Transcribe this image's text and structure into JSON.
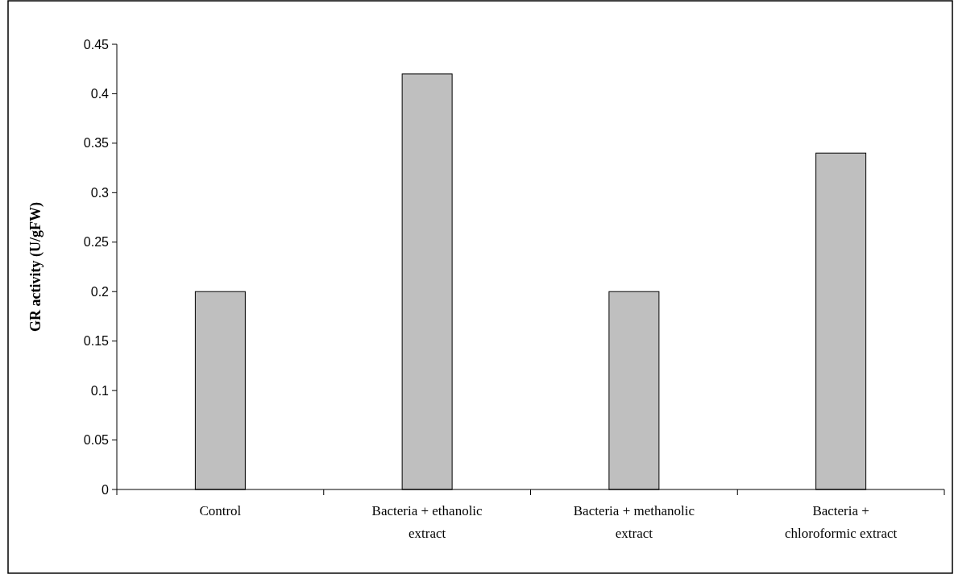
{
  "chart_data": {
    "type": "bar",
    "ylabel": "GR activity  (U/gFW)",
    "categories": [
      "Control",
      "Bacteria + ethanolic extract",
      "Bacteria + methanolic extract",
      "Bacteria + chloroformic extract"
    ],
    "values": [
      0.2,
      0.42,
      0.2,
      0.34
    ],
    "color": "#bfbfbf",
    "ylim": [
      0,
      0.45
    ],
    "yticks": [
      {
        "value": 0,
        "label": "0"
      },
      {
        "value": 0.05,
        "label": "0.05"
      },
      {
        "value": 0.1,
        "label": "0.1"
      },
      {
        "value": 0.15,
        "label": "0.15"
      },
      {
        "value": 0.2,
        "label": "0.2"
      },
      {
        "value": 0.25,
        "label": "0.25"
      },
      {
        "value": 0.3,
        "label": "0.3"
      },
      {
        "value": 0.35,
        "label": "0.35"
      },
      {
        "value": 0.4,
        "label": "0.4"
      },
      {
        "value": 0.45,
        "label": "0.45"
      }
    ],
    "grid": false
  }
}
